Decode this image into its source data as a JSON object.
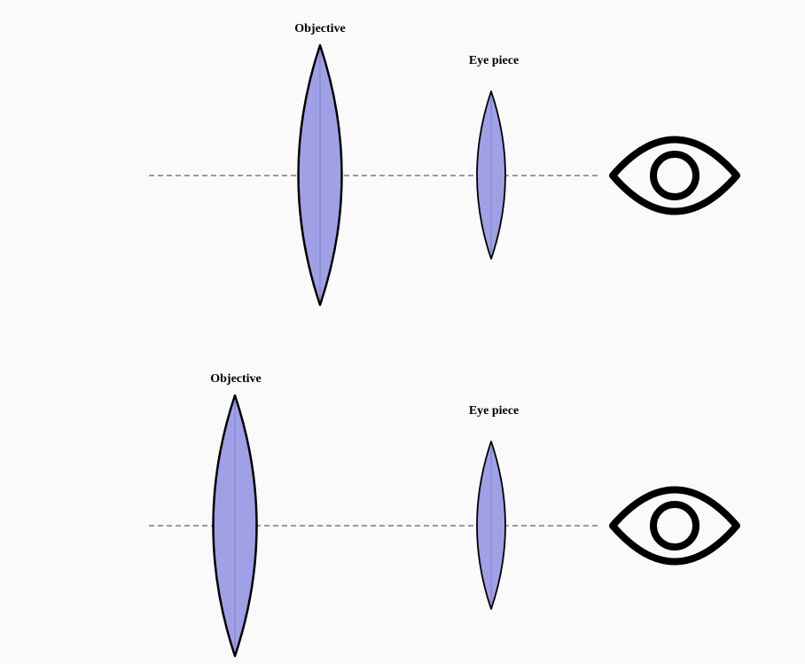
{
  "colors": {
    "background": "#fafafa",
    "lens_fill": "#a0a0e6",
    "lens_stroke": "#000000",
    "axis": "#7a7a8a",
    "eye": "#000000"
  },
  "setups": [
    {
      "objective_label": "Objective",
      "eyepiece_label": "Eye piece"
    },
    {
      "objective_label": "Objective",
      "eyepiece_label": "Eye piece"
    }
  ],
  "icons": {
    "eye": "eye-icon"
  }
}
